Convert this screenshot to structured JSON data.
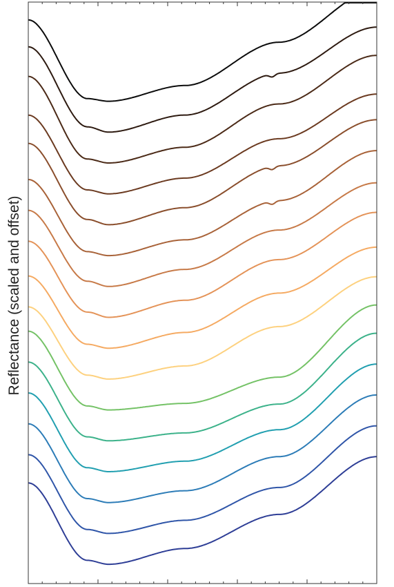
{
  "chart_data": {
    "type": "line",
    "title": "",
    "xlabel": "",
    "ylabel": "Reflectance (scaled and offset)",
    "grid": false,
    "legend": "none",
    "series": [
      {
        "color": "#0b0b0b",
        "y": [
          0.62,
          0.02,
          0.0,
          0.12,
          0.45,
          0.85
        ],
        "feature": false
      },
      {
        "color": "#2d1a10",
        "y": [
          0.65,
          0.04,
          0.0,
          0.13,
          0.45,
          0.8
        ],
        "feature": true
      },
      {
        "color": "#4b2a17",
        "y": [
          0.66,
          0.03,
          0.0,
          0.12,
          0.45,
          0.82
        ],
        "feature": false
      },
      {
        "color": "#6b3a20",
        "y": [
          0.6,
          0.03,
          0.0,
          0.12,
          0.42,
          0.76
        ],
        "feature": false
      },
      {
        "color": "#8a4e2c",
        "y": [
          0.62,
          0.04,
          0.0,
          0.13,
          0.45,
          0.8
        ],
        "feature": true
      },
      {
        "color": "#a86238",
        "y": [
          0.58,
          0.03,
          0.0,
          0.12,
          0.42,
          0.8
        ],
        "feature": true
      },
      {
        "color": "#c77a48",
        "y": [
          0.58,
          0.04,
          0.0,
          0.13,
          0.43,
          0.79
        ],
        "feature": false
      },
      {
        "color": "#e49358",
        "y": [
          0.58,
          0.04,
          0.0,
          0.13,
          0.44,
          0.8
        ],
        "feature": false
      },
      {
        "color": "#f5aa62",
        "y": [
          0.55,
          0.03,
          0.0,
          0.12,
          0.42,
          0.77
        ],
        "feature": false
      },
      {
        "color": "#fdd17f",
        "y": [
          0.55,
          0.03,
          0.0,
          0.1,
          0.4,
          0.78
        ],
        "feature": false
      },
      {
        "color": "#74c266",
        "y": [
          0.6,
          0.03,
          0.0,
          0.05,
          0.25,
          0.8
        ],
        "feature": false
      },
      {
        "color": "#3cb28a",
        "y": [
          0.6,
          0.03,
          0.0,
          0.06,
          0.28,
          0.82
        ],
        "feature": false
      },
      {
        "color": "#219fb0",
        "y": [
          0.6,
          0.03,
          0.0,
          0.08,
          0.32,
          0.82
        ],
        "feature": false
      },
      {
        "color": "#2c7cb7",
        "y": [
          0.6,
          0.03,
          0.0,
          0.09,
          0.35,
          0.82
        ],
        "feature": false
      },
      {
        "color": "#2f55a8",
        "y": [
          0.6,
          0.03,
          0.0,
          0.1,
          0.35,
          0.82
        ],
        "feature": false
      },
      {
        "color": "#2e3e96",
        "y": [
          0.62,
          0.03,
          0.0,
          0.12,
          0.38,
          0.82
        ],
        "feature": false
      }
    ]
  }
}
